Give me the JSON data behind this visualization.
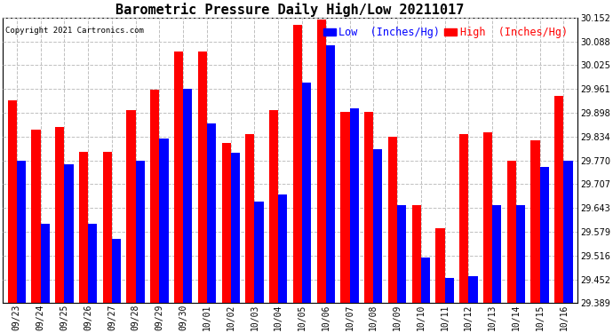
{
  "title": "Barometric Pressure Daily High/Low 20211017",
  "copyright": "Copyright 2021 Cartronics.com",
  "legend_low": "Low  (Inches/Hg)",
  "legend_high": "High  (Inches/Hg)",
  "dates": [
    "09/23",
    "09/24",
    "09/25",
    "09/26",
    "09/27",
    "09/28",
    "09/29",
    "09/30",
    "10/01",
    "10/02",
    "10/03",
    "10/04",
    "10/05",
    "10/06",
    "10/07",
    "10/08",
    "10/09",
    "10/10",
    "10/11",
    "10/12",
    "10/13",
    "10/14",
    "10/15",
    "10/16"
  ],
  "high_values": [
    29.93,
    29.854,
    29.86,
    29.793,
    29.793,
    29.905,
    29.96,
    30.062,
    30.062,
    29.817,
    29.84,
    29.905,
    30.134,
    30.148,
    29.9,
    29.9,
    29.834,
    29.65,
    29.59,
    29.84,
    29.845,
    29.77,
    29.825,
    29.942
  ],
  "low_values": [
    29.769,
    29.601,
    29.76,
    29.601,
    29.56,
    29.769,
    29.83,
    29.962,
    29.87,
    29.79,
    29.66,
    29.68,
    29.978,
    30.078,
    29.91,
    29.8,
    29.65,
    29.51,
    29.457,
    29.462,
    29.65,
    29.65,
    29.754,
    29.769
  ],
  "ymin": 29.389,
  "ymax": 30.152,
  "yticks": [
    29.389,
    29.452,
    29.516,
    29.579,
    29.643,
    29.707,
    29.77,
    29.834,
    29.898,
    29.961,
    30.025,
    30.088,
    30.152
  ],
  "bar_width": 0.38,
  "high_color": "#ff0000",
  "low_color": "#0000ff",
  "bg_color": "#ffffff",
  "grid_color": "#c0c0c0",
  "title_fontsize": 11,
  "tick_fontsize": 7,
  "legend_fontsize": 8.5
}
